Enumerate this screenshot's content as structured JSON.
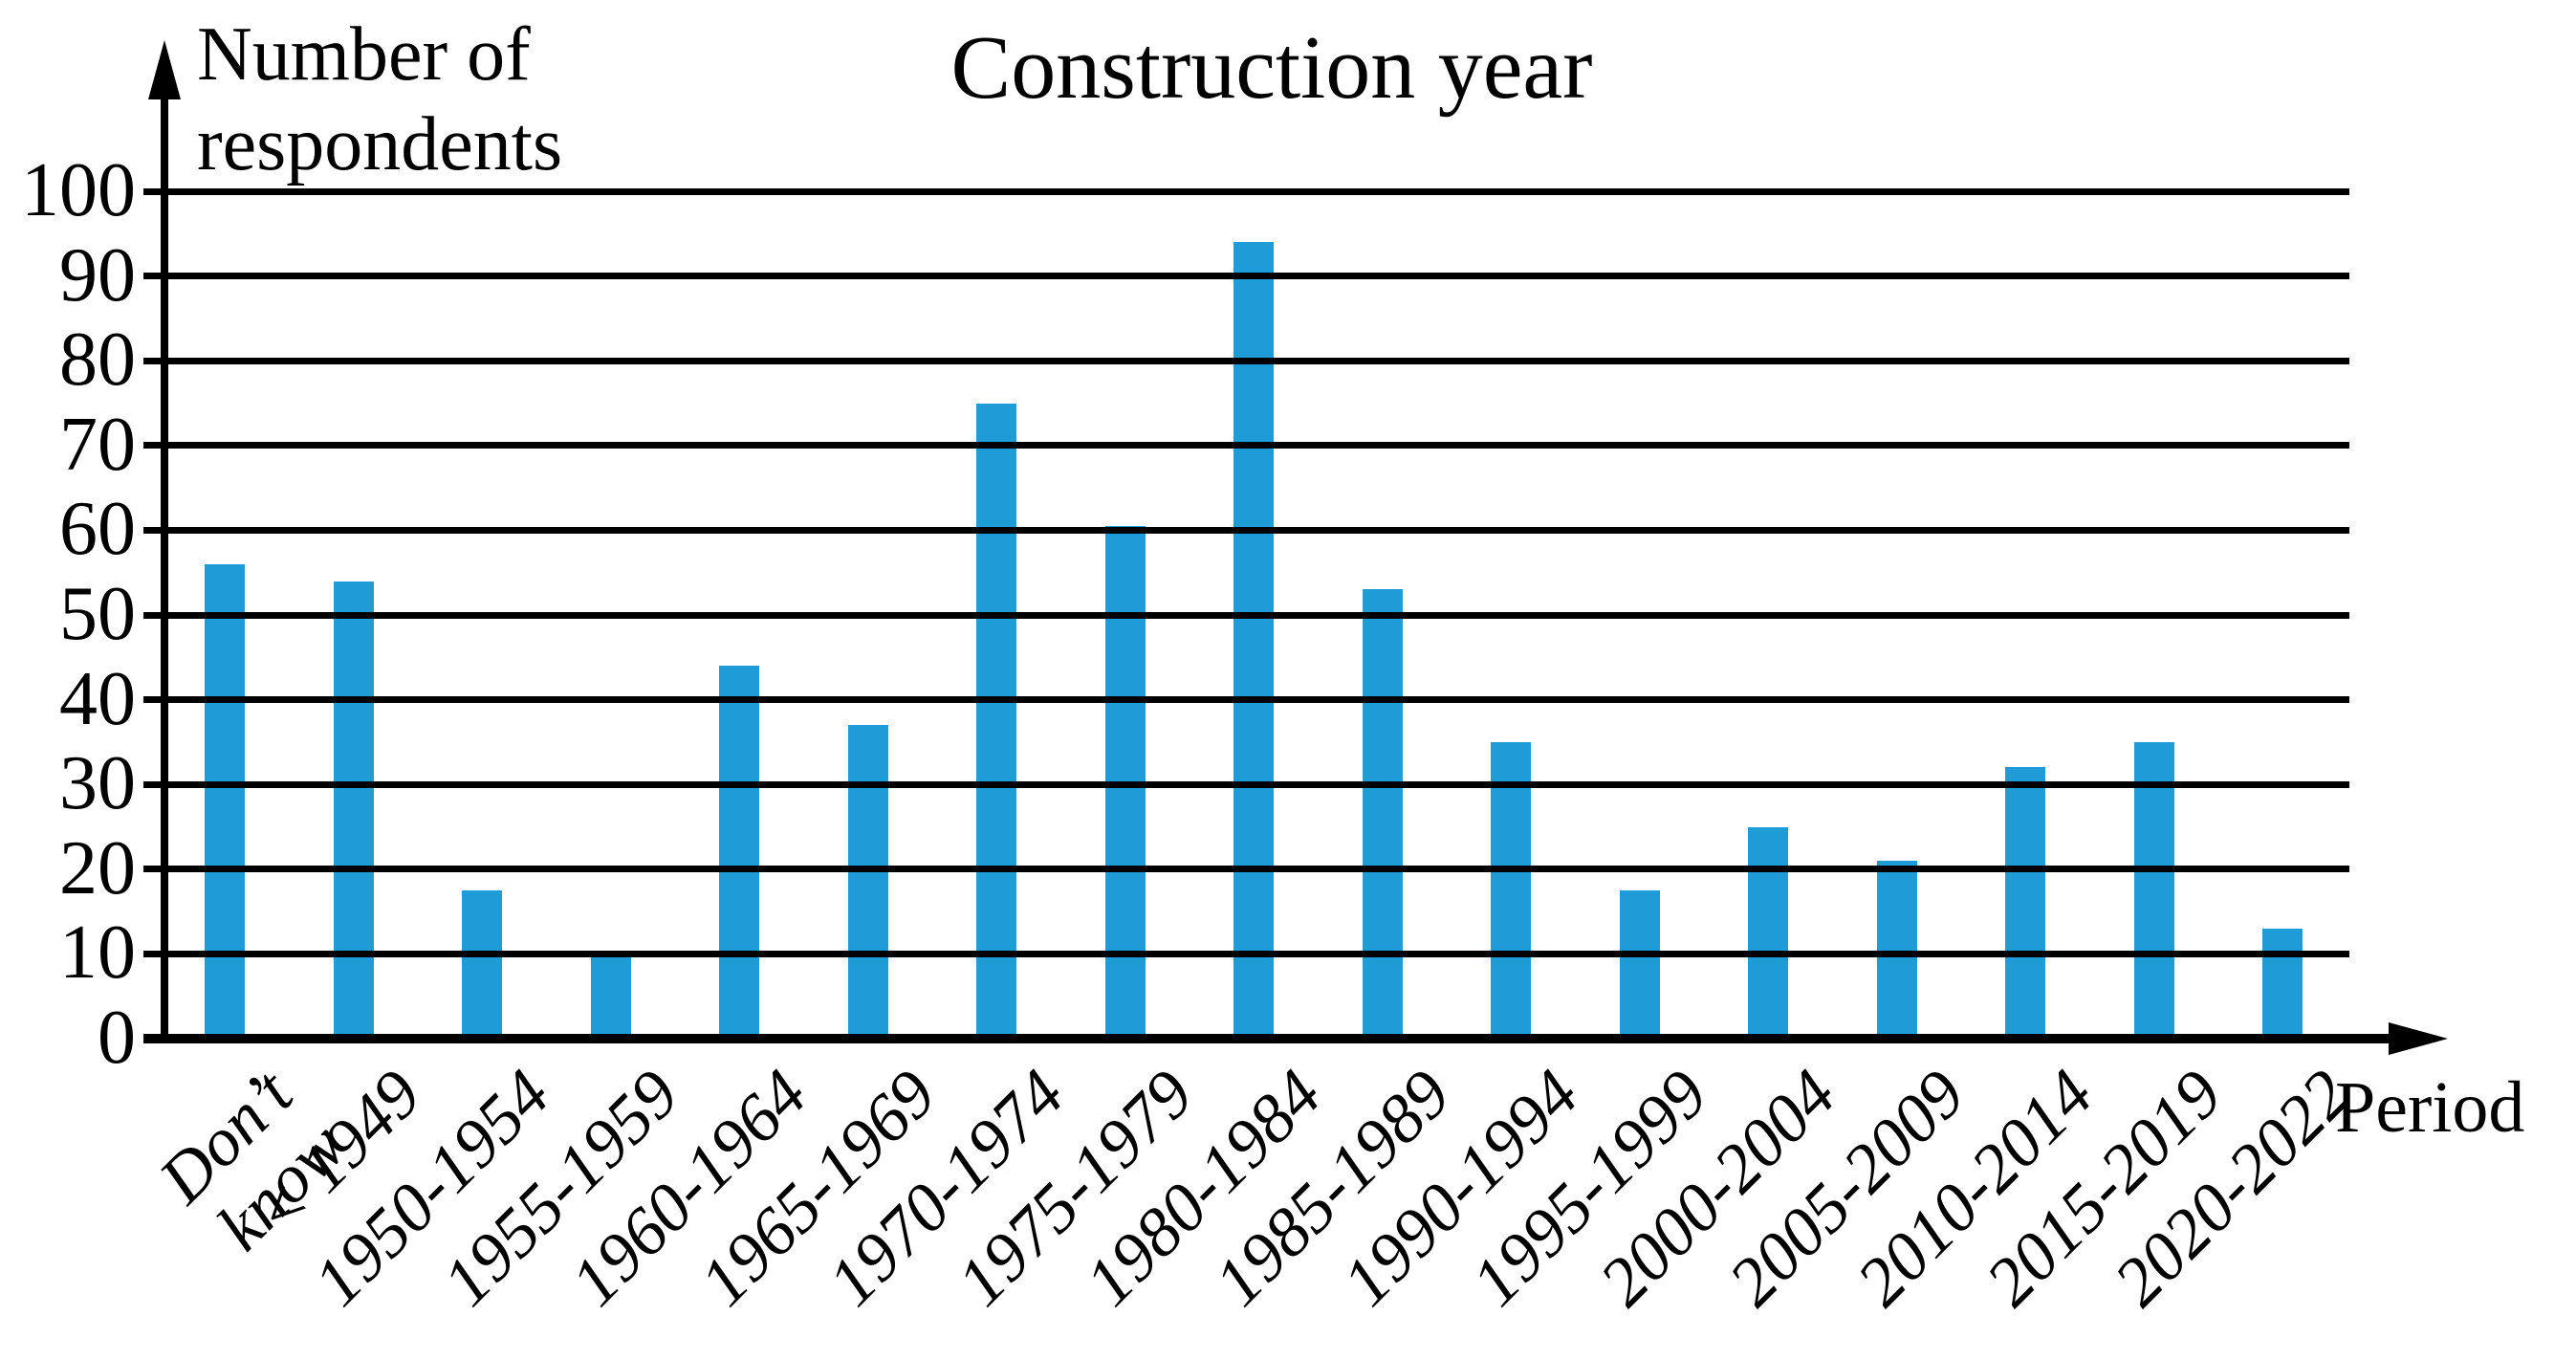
{
  "chart_data": {
    "type": "bar",
    "title": "Construction year",
    "ylabel": "Number of\nrespondents",
    "xlabel": "Period",
    "categories": [
      "Don’t\nknow",
      "< 1949",
      "1950-1954",
      "1955-1959",
      "1960-1964",
      "1965-1969",
      "1970-1974",
      "1975-1979",
      "1980-1984",
      "1985-1989",
      "1990-1994",
      "1995-1999",
      "2000-2004",
      "2005-2009",
      "2010-2014",
      "2015-2019",
      "2020-2022"
    ],
    "values": [
      56,
      54,
      17.5,
      10,
      44,
      37,
      75,
      60.5,
      94,
      53,
      35,
      17.5,
      25,
      21,
      32,
      35,
      13
    ],
    "ylim": [
      0,
      100
    ],
    "yticks": [
      0,
      10,
      20,
      30,
      40,
      50,
      60,
      70,
      80,
      90,
      100
    ],
    "grid": true,
    "legend_position": "none",
    "bar_color": "#1E9CD8",
    "axis_color": "#000000",
    "background_color": "#FFFFFF"
  }
}
